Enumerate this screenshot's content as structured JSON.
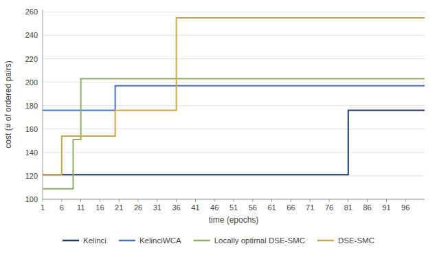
{
  "chart_data": {
    "type": "line",
    "title": "",
    "x_label": "time (epochs)",
    "y_label": "cost (# of ordered pairs)",
    "xlim": [
      1,
      101
    ],
    "ylim": [
      100,
      262
    ],
    "xticks": [
      1,
      6,
      11,
      16,
      21,
      26,
      31,
      36,
      41,
      46,
      51,
      56,
      61,
      66,
      71,
      76,
      81,
      86,
      91,
      96
    ],
    "yticks": [
      100,
      120,
      140,
      160,
      180,
      200,
      220,
      240,
      260
    ],
    "grid": "y",
    "legend": "bottom",
    "series": [
      {
        "name": "Kelinci",
        "color": "#1f3864",
        "x": [
          1,
          81,
          81,
          101
        ],
        "values": [
          121,
          121,
          176,
          176
        ]
      },
      {
        "name": "KelinciWCA",
        "color": "#4472c4",
        "x": [
          1,
          20,
          20,
          101
        ],
        "values": [
          176,
          176,
          197,
          197
        ]
      },
      {
        "name": "Locally optimal DSE-SMC",
        "color": "#8faf5f",
        "x": [
          1,
          9,
          9,
          11,
          11,
          101
        ],
        "values": [
          109,
          109,
          151,
          151,
          203,
          203
        ]
      },
      {
        "name": "DSE-SMC",
        "color": "#c9a84c",
        "x": [
          1,
          6,
          6,
          20,
          20,
          36,
          36,
          101
        ],
        "values": [
          121,
          121,
          154,
          154,
          176,
          176,
          255,
          255
        ]
      }
    ]
  }
}
